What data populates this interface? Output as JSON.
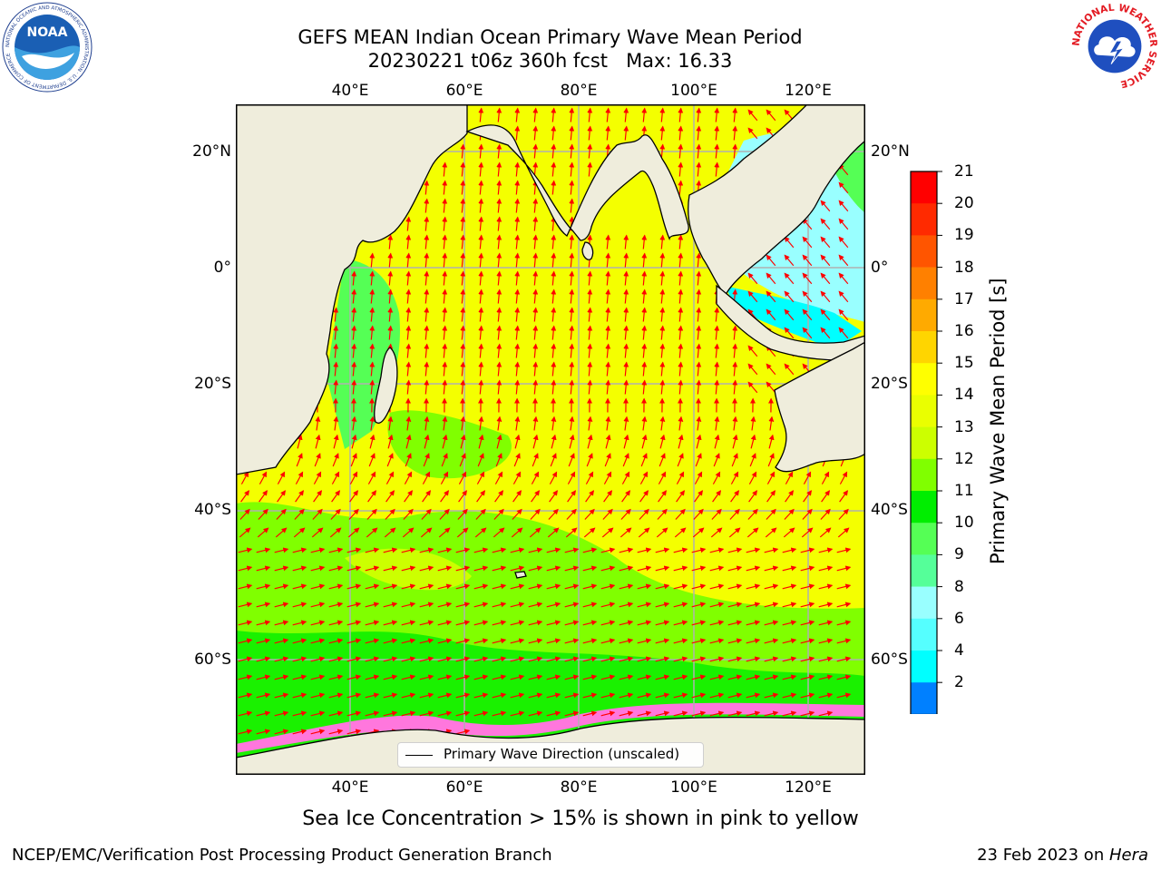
{
  "title": {
    "line1": "GEFS MEAN Indian Ocean Primary Wave Mean Period",
    "line2": "20230221 t06z 360h fcst   Max: 16.33"
  },
  "map": {
    "lon_ticks_top": [
      "40°E",
      "60°E",
      "80°E",
      "100°E",
      "120°E"
    ],
    "lon_ticks_bottom": [
      "40°E",
      "60°E",
      "80°E",
      "100°E",
      "120°E"
    ],
    "lat_ticks_left": [
      "20°N",
      "0°",
      "20°S",
      "40°S",
      "60°S"
    ],
    "lat_ticks_right": [
      "20°N",
      "0°",
      "20°S",
      "40°S",
      "60°S"
    ],
    "legend": "Primary Wave Direction (unscaled)",
    "land_color": "#efeddc",
    "arrow_color": "#ff0000"
  },
  "colorbar": {
    "label": "Primary Wave Mean Period [s]",
    "ticks": [
      "21",
      "20",
      "19",
      "18",
      "17",
      "16",
      "15",
      "14",
      "13",
      "12",
      "11",
      "10",
      "9",
      "8",
      "6",
      "4",
      "2"
    ],
    "colors": [
      "#ff0000",
      "#ff2a00",
      "#ff5500",
      "#ff8000",
      "#ffaa00",
      "#ffd500",
      "#ffff00",
      "#eaff00",
      "#ccff00",
      "#80ff00",
      "#00ee00",
      "#55ff55",
      "#55ff99",
      "#99ffff",
      "#55ffff",
      "#00ffff",
      "#0080ff"
    ],
    "under_color": "#0000ff"
  },
  "logos": {
    "noaa_text": "NOAA",
    "noaa_ring_text": "NATIONAL OCEANIC AND ATMOSPHERIC ADMINISTRATION · U.S. DEPARTMENT OF COMMERCE",
    "nws_ring_text": "NATIONAL WEATHER SERVICE"
  },
  "caption": "Sea Ice Concentration > 15% is shown in pink to yellow",
  "footer": {
    "left": "NCEP/EMC/Verification Post Processing Product Generation Branch",
    "right_prefix": "23 Feb 2023 on ",
    "right_machine": "Hera"
  }
}
